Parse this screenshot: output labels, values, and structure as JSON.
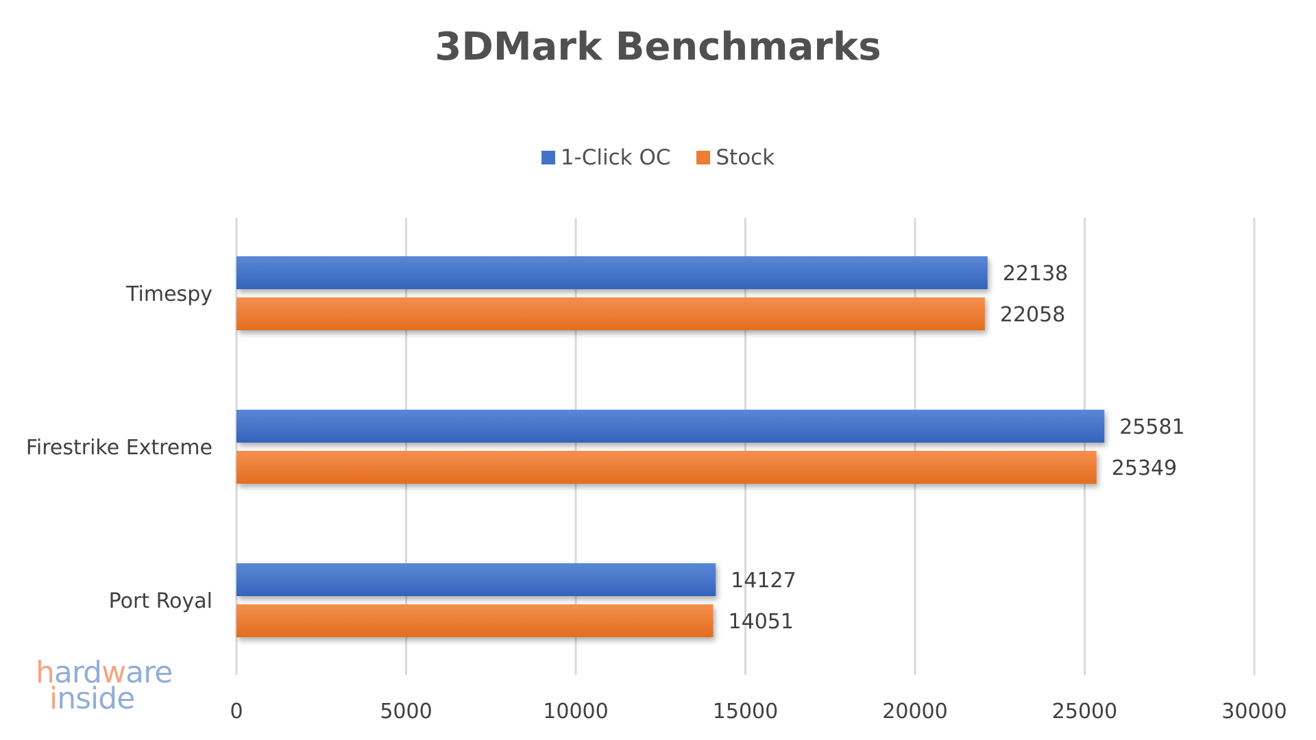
{
  "chart_data": {
    "type": "bar",
    "orientation": "horizontal",
    "title": "3DMark Benchmarks",
    "categories": [
      "Timespy",
      "Firestrike Extreme",
      "Port Royal"
    ],
    "series": [
      {
        "name": "1-Click OC",
        "color": "#4472C4",
        "values": [
          22138,
          25581,
          14127
        ]
      },
      {
        "name": "Stock",
        "color": "#ED7D31",
        "values": [
          22058,
          25349,
          14051
        ]
      }
    ],
    "xlim": [
      0,
      30000
    ],
    "xticks": [
      0,
      5000,
      10000,
      15000,
      20000,
      25000,
      30000
    ],
    "grid": true,
    "legend_position": "top",
    "data_labels": true
  },
  "watermark": {
    "line1": "hardware",
    "line2": "inside",
    "colors": [
      "#F4A582",
      "#92AED6"
    ]
  }
}
